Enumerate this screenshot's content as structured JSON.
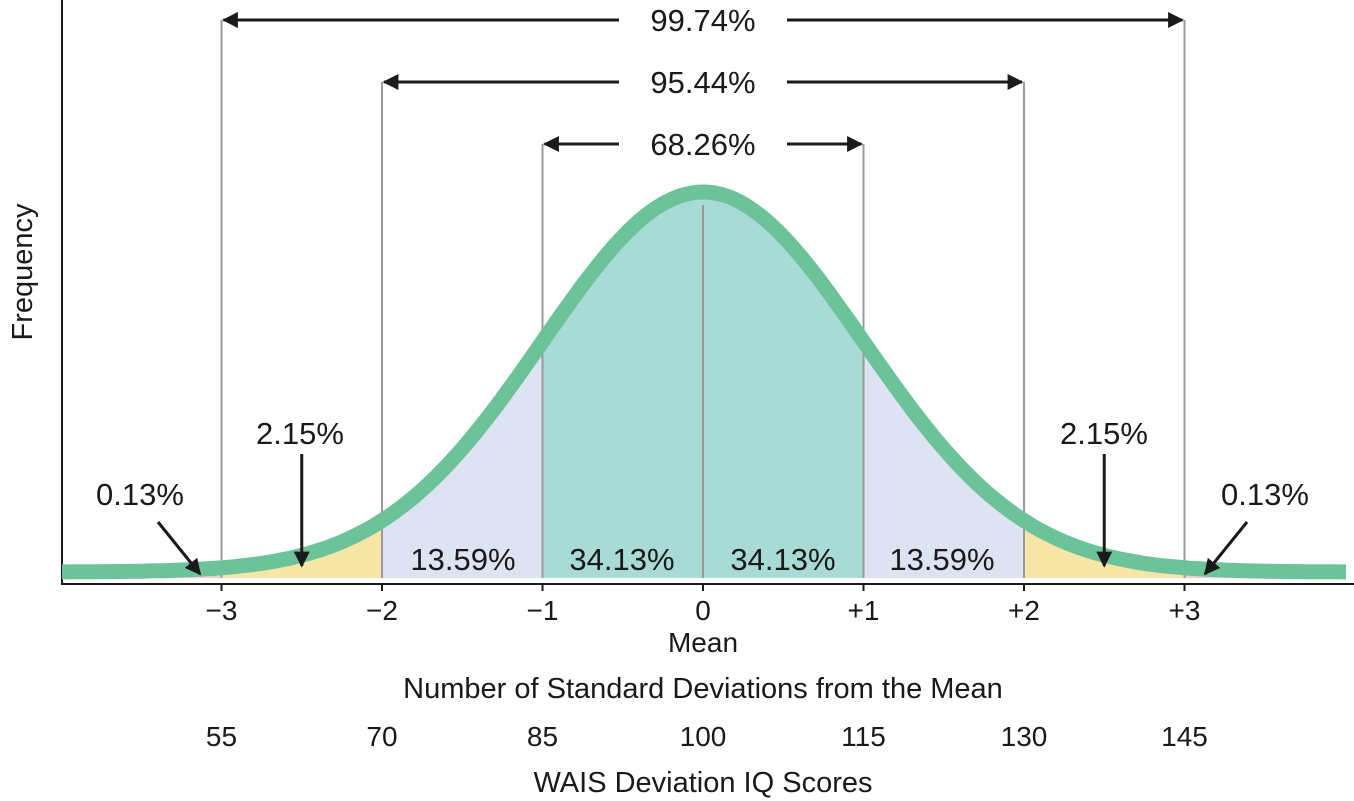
{
  "chart_data": {
    "type": "area",
    "ylabel": "Frequency",
    "xlabel": "Number of Standard Deviations from the Mean",
    "x2label": "WAIS Deviation IQ Scores",
    "mean_label": "Mean",
    "sd_ticks": [
      "−3",
      "−2",
      "−1",
      "0",
      "+1",
      "+2",
      "+3"
    ],
    "sd_values": [
      -3,
      -2,
      -1,
      0,
      1,
      2,
      3
    ],
    "iq_ticks": [
      "55",
      "70",
      "85",
      "100",
      "115",
      "130",
      "145"
    ],
    "regions": [
      {
        "from": -4,
        "to": -3,
        "label": "0.13%",
        "color": "#f4cfd0"
      },
      {
        "from": -3,
        "to": -2,
        "label": "2.15%",
        "color": "#f8e6a6"
      },
      {
        "from": -2,
        "to": -1,
        "label": "13.59%",
        "color": "#dde3f3"
      },
      {
        "from": -1,
        "to": 0,
        "label": "34.13%",
        "color": "#a8dad6"
      },
      {
        "from": 0,
        "to": 1,
        "label": "34.13%",
        "color": "#a8dad6"
      },
      {
        "from": 1,
        "to": 2,
        "label": "13.59%",
        "color": "#dde3f3"
      },
      {
        "from": 2,
        "to": 3,
        "label": "2.15%",
        "color": "#f8e6a6"
      },
      {
        "from": 3,
        "to": 4,
        "label": "0.13%",
        "color": "#f4cfd0"
      }
    ],
    "spans": [
      {
        "from": -3,
        "to": 3,
        "label": "99.74%"
      },
      {
        "from": -2,
        "to": 2,
        "label": "95.44%"
      },
      {
        "from": -1,
        "to": 1,
        "label": "68.26%"
      }
    ],
    "curve_color": "#6cc39a",
    "x_range": [
      -4,
      4
    ]
  }
}
